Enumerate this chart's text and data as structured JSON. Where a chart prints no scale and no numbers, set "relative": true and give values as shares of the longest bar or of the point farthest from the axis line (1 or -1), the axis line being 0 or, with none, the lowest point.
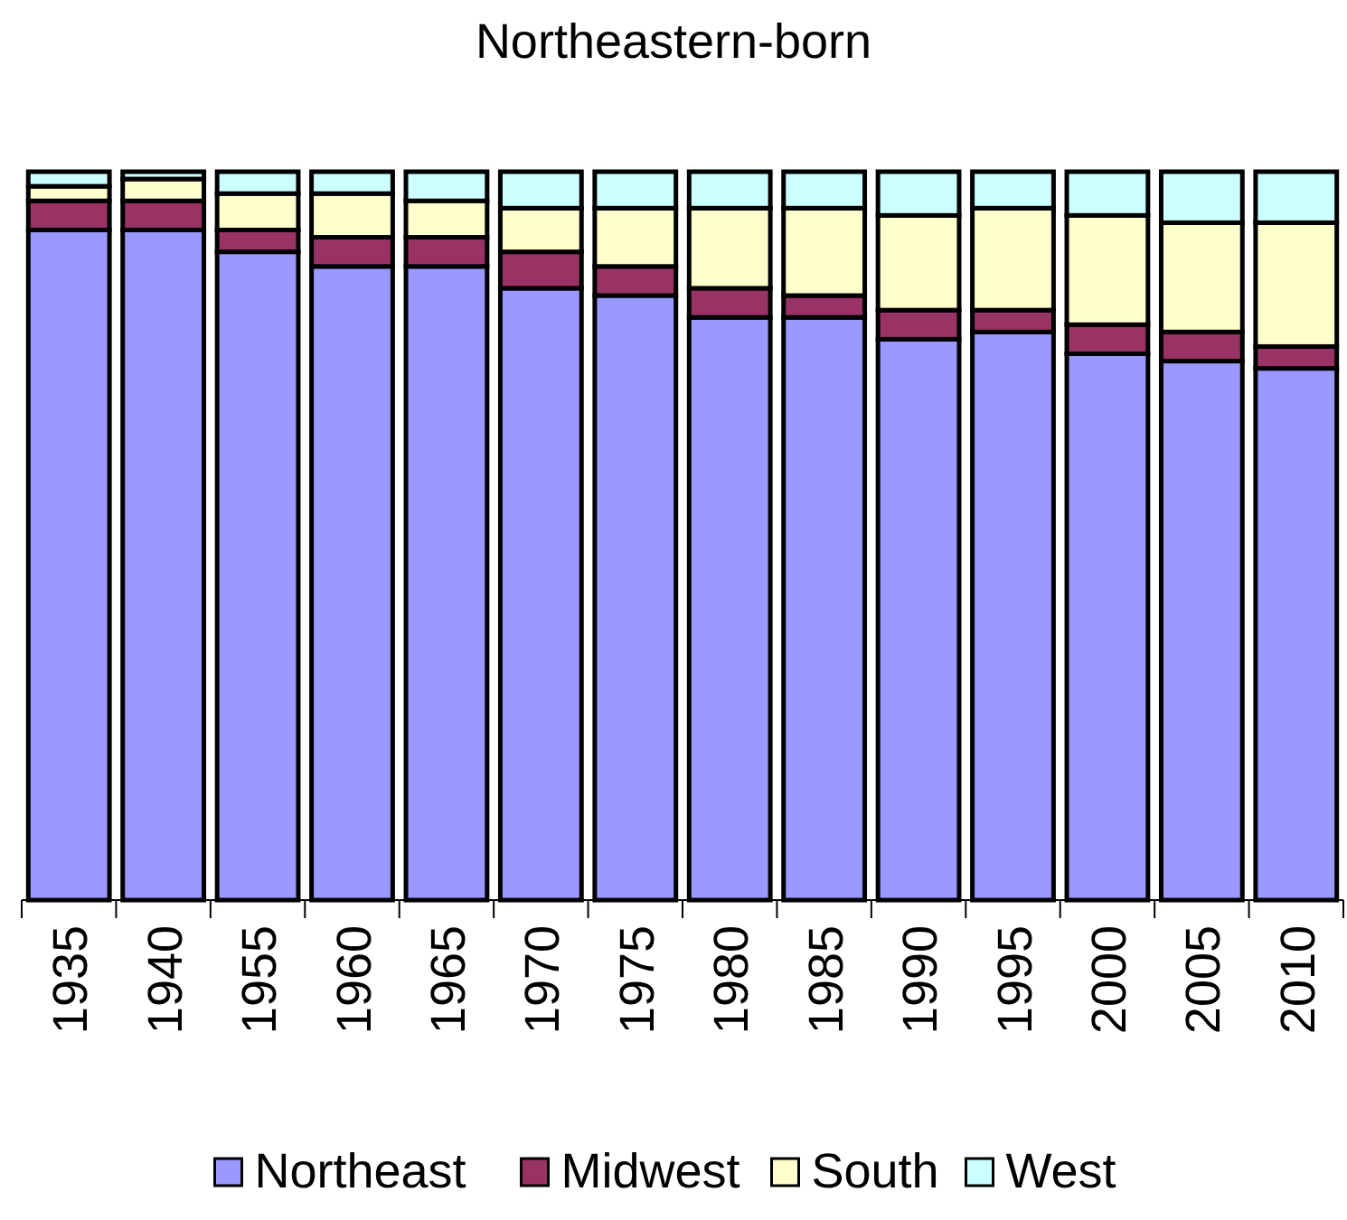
{
  "chart_data": {
    "type": "bar",
    "title": "Northeastern-born",
    "stacked": true,
    "relative": true,
    "legend": "bottom",
    "categories": [
      "1935",
      "1940",
      "1955",
      "1960",
      "1965",
      "1970",
      "1975",
      "1980",
      "1985",
      "1990",
      "1995",
      "2000",
      "2005",
      "2010"
    ],
    "series": [
      {
        "name": "Northeast",
        "color": "#9999ff",
        "values": [
          0.92,
          0.92,
          0.89,
          0.87,
          0.87,
          0.84,
          0.83,
          0.8,
          0.8,
          0.77,
          0.78,
          0.75,
          0.74,
          0.73
        ]
      },
      {
        "name": "Midwest",
        "color": "#993366",
        "values": [
          0.04,
          0.04,
          0.03,
          0.04,
          0.04,
          0.05,
          0.04,
          0.04,
          0.03,
          0.04,
          0.03,
          0.04,
          0.04,
          0.03
        ]
      },
      {
        "name": "South",
        "color": "#ffffcc",
        "values": [
          0.02,
          0.03,
          0.05,
          0.06,
          0.05,
          0.06,
          0.08,
          0.11,
          0.12,
          0.13,
          0.14,
          0.15,
          0.15,
          0.17
        ]
      },
      {
        "name": "West",
        "color": "#ccffff",
        "values": [
          0.02,
          0.01,
          0.03,
          0.03,
          0.04,
          0.05,
          0.05,
          0.05,
          0.05,
          0.06,
          0.05,
          0.06,
          0.07,
          0.07
        ]
      }
    ]
  }
}
